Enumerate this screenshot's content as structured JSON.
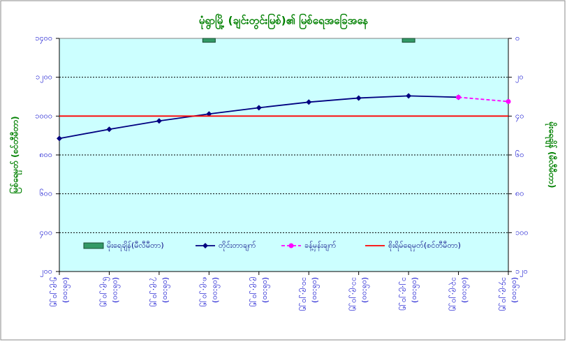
{
  "chart_data": {
    "type": "line",
    "title": "မုံရွာမြို့ (ချင်းတွင်းမြစ်)၏ မြစ်ရေအခြေအနေ",
    "y_label": "မြစ်ရေမှတ် (စင်တီမီတာ)",
    "y2_label": "မိုးရေချိန် (မီလီမီတာ)",
    "categories": [
      [
        "၅.၉.၂၀၂၅",
        "(၀၆:၀၀)"
      ],
      [
        "၆.၉.၂၀၂၅",
        "(၀၆:၀၀)"
      ],
      [
        "၇.၉.၂၀၂၅",
        "(၀၆:၀၀)"
      ],
      [
        "၈.၉.၂၀၂၅",
        "(၀၆:၀၀)"
      ],
      [
        "၉.၉.၂၀၂၅",
        "(၀၆:၀၀)"
      ],
      [
        "၁၀.၉.၂၀၂၅",
        "(၀၆:၀၀)"
      ],
      [
        "၁၁.၉.၂၀၂၅",
        "(၀၆:၀၀)"
      ],
      [
        "၁၂.၉.၂၀၂၅",
        "(၀၆:၀၀)"
      ],
      [
        "၁၃.၉.၂၀၂၅",
        "(၀၆:၀၀)"
      ],
      [
        "၁၄.၉.၂၀၂၅",
        "(၀၆:၀၀)"
      ]
    ],
    "series": [
      {
        "name": "မိုးရေချိန်(မီလီမီတာ)",
        "kind": "bar",
        "axis": "y2",
        "color": "#339966",
        "values": [
          0,
          0,
          0,
          2,
          0,
          0,
          0,
          2,
          0,
          0
        ]
      },
      {
        "name": "တိုင်းတာချက်",
        "kind": "line",
        "color": "#000080",
        "marker": "diamond",
        "values": [
          885,
          932,
          975,
          1011,
          1043,
          1072,
          1093,
          1104,
          1097,
          null
        ]
      },
      {
        "name": "ခန့်မှန်းချက်",
        "kind": "line",
        "dashed": true,
        "color": "#ff00ff",
        "marker": "circle",
        "values": [
          null,
          null,
          null,
          null,
          null,
          null,
          null,
          null,
          1097,
          1075
        ]
      },
      {
        "name": "စိုးရိမ်ရေမှတ်(စင်တီမီတာ)",
        "kind": "line",
        "color": "#ff0000",
        "values": [
          1000,
          1000,
          1000,
          1000,
          1000,
          1000,
          1000,
          1000,
          1000,
          1000
        ]
      }
    ],
    "ylim": [
      200,
      1400
    ],
    "yticks": [
      {
        "value": 200,
        "label": "၂၀၀"
      },
      {
        "value": 400,
        "label": "၄၀၀"
      },
      {
        "value": 600,
        "label": "၆၀၀"
      },
      {
        "value": 800,
        "label": "၈၀၀"
      },
      {
        "value": 1000,
        "label": "၁၀၀၀"
      },
      {
        "value": 1200,
        "label": "၁၂၀၀"
      },
      {
        "value": 1400,
        "label": "၁၄၀၀"
      }
    ],
    "y2lim": [
      0,
      120
    ],
    "y2_reversed": true,
    "y2ticks": [
      {
        "value": 0,
        "label": "၀"
      },
      {
        "value": 20,
        "label": "၂၀"
      },
      {
        "value": 40,
        "label": "၄၀"
      },
      {
        "value": 60,
        "label": "၆၀"
      },
      {
        "value": 80,
        "label": "၈၀"
      },
      {
        "value": 100,
        "label": "၁၀၀"
      },
      {
        "value": 120,
        "label": "၁၂၀"
      }
    ],
    "grid": true
  }
}
